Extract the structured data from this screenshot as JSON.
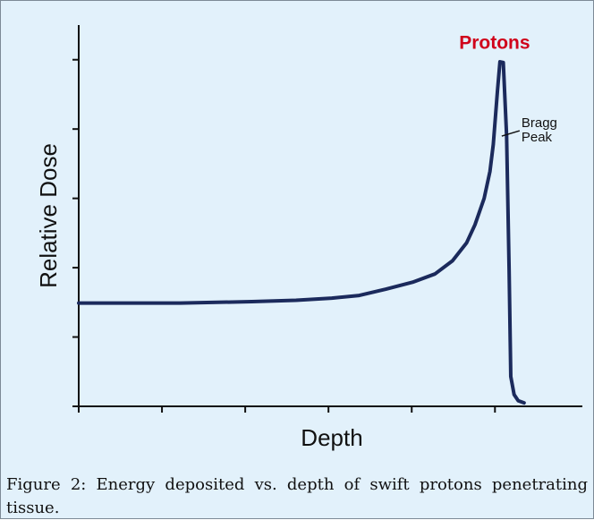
{
  "chart_data": {
    "type": "line",
    "ylabel": "Relative Dose",
    "xlabel": "Depth",
    "annotation_lines": [
      "Bragg",
      "Peak"
    ],
    "x": [
      0,
      1.22,
      2.08,
      2.61,
      3.04,
      3.37,
      3.69,
      4.01,
      4.28,
      4.49,
      4.66,
      4.76,
      4.87,
      4.94,
      4.98,
      5.03,
      5.06,
      5.1,
      5.14,
      5.17,
      5.19,
      5.23,
      5.28,
      5.35
    ],
    "series": [
      {
        "name": "Protons",
        "color": "#1b2a5c",
        "label_color": "#d0021b",
        "values": [
          1.49,
          1.49,
          1.51,
          1.53,
          1.56,
          1.6,
          1.69,
          1.79,
          1.91,
          2.1,
          2.36,
          2.62,
          3.0,
          3.39,
          3.78,
          4.55,
          4.97,
          4.96,
          3.9,
          1.97,
          0.43,
          0.17,
          0.08,
          0.05
        ]
      }
    ],
    "xlim": [
      0,
      6.05
    ],
    "xticks": [
      0,
      1,
      2,
      3,
      4,
      5
    ],
    "ylim": [
      0,
      5.5
    ],
    "yticks": [
      0,
      1,
      2,
      3,
      4,
      5
    ],
    "grid": false
  },
  "caption": "Figure 2: Energy deposited vs. depth of swift protons penetrating tissue."
}
